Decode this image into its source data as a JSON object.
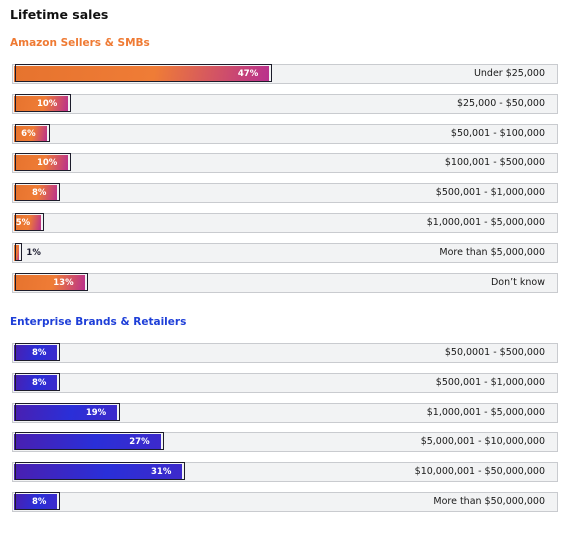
{
  "chart_data": {
    "type": "bar",
    "orientation": "horizontal",
    "title": "Lifetime sales",
    "value_suffix": "%",
    "xlim": [
      0,
      100
    ],
    "groups": [
      {
        "name": "Amazon Sellers & SMBs",
        "color": "#ef7a33",
        "gradient": [
          "#e6732e",
          "#ef7c36",
          "#b9308d"
        ],
        "categories": [
          "Under $25,000",
          "$25,000 - $50,000",
          "$50,001 - $100,000",
          "$100,001 - $500,000",
          "$500,001 - $1,000,000",
          "$1,000,001 - $5,000,000",
          "More than $5,000,000",
          "Don’t know"
        ],
        "values": [
          47,
          10,
          6,
          10,
          8,
          5,
          1,
          13
        ]
      },
      {
        "name": "Enterprise Brands & Retailers",
        "color": "#1e3fd8",
        "gradient": [
          "#4a1fb0",
          "#2a2fd8",
          "#3d2acb"
        ],
        "categories": [
          "$50,0001 - $500,000",
          "$500,001 - $1,000,000",
          "$1,000,001 - $5,000,000",
          "$5,000,001 - $10,000,000",
          "$10,000,001 - $50,000,000",
          "More than $50,000,000"
        ],
        "values": [
          8,
          8,
          19,
          27,
          31,
          8
        ]
      }
    ]
  }
}
